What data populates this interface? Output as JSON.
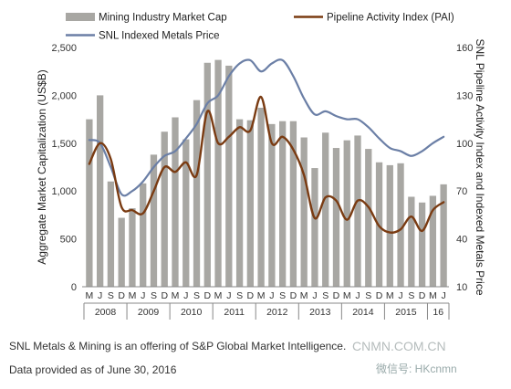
{
  "chart_data": {
    "type": "bar+line",
    "x": [
      "M",
      "J",
      "S",
      "D",
      "M",
      "J",
      "S",
      "D",
      "M",
      "J",
      "S",
      "D",
      "M",
      "J",
      "S",
      "D",
      "M",
      "J",
      "S",
      "D",
      "M",
      "J",
      "S",
      "D",
      "M",
      "J",
      "S",
      "D",
      "M",
      "J",
      "S",
      "D",
      "M",
      "J"
    ],
    "years": [
      {
        "label": "2008",
        "span": [
          0,
          3
        ]
      },
      {
        "label": "2009",
        "span": [
          4,
          7
        ]
      },
      {
        "label": "2010",
        "span": [
          8,
          11
        ]
      },
      {
        "label": "2011",
        "span": [
          12,
          15
        ]
      },
      {
        "label": "2012",
        "span": [
          16,
          19
        ]
      },
      {
        "label": "2013",
        "span": [
          20,
          23
        ]
      },
      {
        "label": "2014",
        "span": [
          24,
          27
        ]
      },
      {
        "label": "2015",
        "span": [
          28,
          31
        ]
      },
      {
        "label": "16",
        "span": [
          32,
          33
        ]
      }
    ],
    "series": [
      {
        "name": "Mining Industry Market Cap",
        "kind": "bar",
        "axis": "left",
        "color": "#a8a7a3",
        "values": [
          1750,
          2000,
          1100,
          720,
          820,
          1080,
          1380,
          1620,
          1770,
          1540,
          1950,
          2340,
          2370,
          2310,
          1750,
          1740,
          1870,
          1700,
          1730,
          1730,
          1560,
          1240,
          1610,
          1450,
          1530,
          1580,
          1440,
          1300,
          1270,
          1290,
          940,
          880,
          950,
          1070
        ]
      },
      {
        "name": "Pipeline Activity Index (PAI)",
        "kind": "line",
        "axis": "right",
        "color": "#7a3b12",
        "values": [
          87,
          100,
          90,
          60,
          58,
          56,
          70,
          85,
          82,
          88,
          80,
          120,
          100,
          104,
          110,
          108,
          129,
          100,
          104,
          96,
          80,
          53,
          66,
          64,
          52,
          64,
          60,
          48,
          44,
          46,
          54,
          45,
          58,
          63
        ]
      },
      {
        "name": "SNL Indexed Metals Price",
        "kind": "line",
        "axis": "right",
        "color": "#6b7fa6",
        "values": [
          102,
          100,
          85,
          68,
          70,
          76,
          85,
          92,
          95,
          103,
          112,
          125,
          130,
          142,
          150,
          152,
          145,
          150,
          152,
          142,
          128,
          118,
          120,
          117,
          115,
          115,
          110,
          103,
          97,
          95,
          92,
          95,
          100,
          104
        ]
      }
    ],
    "y_left": {
      "label": "Aggregate Market Capitalization (US$B)",
      "ticks": [
        "0",
        "500",
        "1,000",
        "1,500",
        "2,000",
        "2,500"
      ],
      "min": 0,
      "max": 2500
    },
    "y_right": {
      "label": "SNL Pipeline Activity Index and Indexed Metals Price",
      "ticks": [
        "10",
        "40",
        "70",
        "100",
        "130",
        "160"
      ],
      "min": 10,
      "max": 160
    },
    "grid": false,
    "legend": {
      "placement": "top"
    }
  },
  "footnotes": {
    "line1": "SNL Metals & Mining is an offering of S&P Global Market Intelligence.",
    "line2": "Data provided as of June 30, 2016"
  },
  "watermark": {
    "site": "CNMN.COM.CN",
    "wechat": "微信号: HKcnmn"
  },
  "colors": {
    "bars": "#a8a7a3",
    "pai": "#7a3b12",
    "metals": "#6b7fa6"
  }
}
